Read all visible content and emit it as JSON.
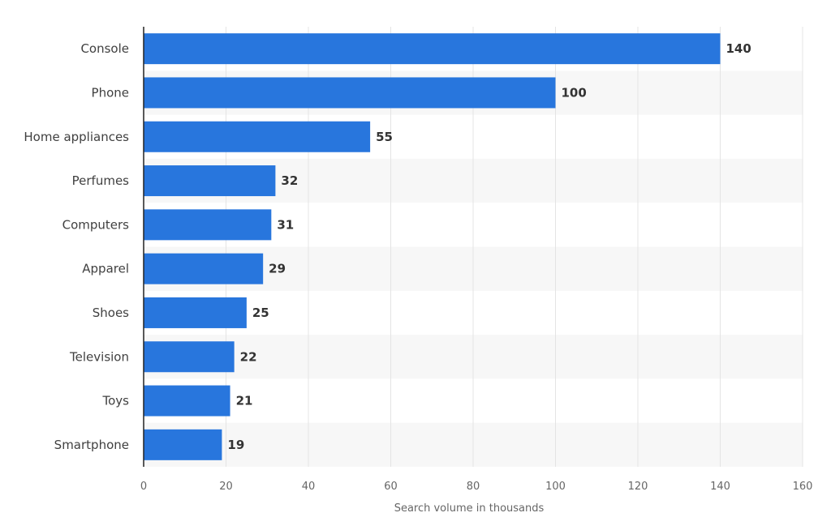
{
  "chart_data": {
    "type": "bar",
    "orientation": "horizontal",
    "categories": [
      "Console",
      "Phone",
      "Home appliances",
      "Perfumes",
      "Computers",
      "Apparel",
      "Shoes",
      "Television",
      "Toys",
      "Smartphone"
    ],
    "values": [
      140,
      100,
      55,
      32,
      31,
      29,
      25,
      22,
      21,
      19
    ],
    "xlabel": "Search volume in thousands",
    "ylabel": "",
    "xlim": [
      0,
      160
    ],
    "xticks": [
      "0",
      "20",
      "40",
      "60",
      "80",
      "100",
      "120",
      "140",
      "160"
    ],
    "grid": true,
    "bar_color": "#2876dd",
    "band_color": "#f7f7f7",
    "grid_color": "#e4e4e4",
    "axis_color": "#222222"
  }
}
